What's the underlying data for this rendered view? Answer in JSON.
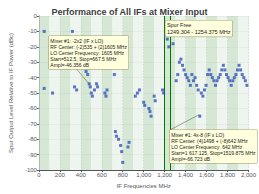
{
  "chart_data": {
    "type": "scatter",
    "title": "Performance of All IFs at Mixer Input",
    "xlabel": "IF Frequencies MHz",
    "ylabel": "Spur Output Level Relative to IF Power (dBc)",
    "xlim": [
      0,
      2000
    ],
    "ylim": [
      -100,
      0
    ],
    "xticks": [
      0,
      200,
      400,
      600,
      800,
      1000,
      1200,
      1400,
      1600,
      1800,
      2000
    ],
    "yticks": [
      0,
      -10,
      -20,
      -30,
      -40,
      -50,
      -60,
      -70,
      -80,
      -90,
      -100
    ],
    "grid": true,
    "color": "#3355bb",
    "marker": "square",
    "x": [
      50,
      50,
      130,
      320,
      340,
      360,
      450,
      465,
      480,
      490,
      500,
      510,
      530,
      550,
      560,
      630,
      640,
      650,
      720,
      730,
      740,
      760,
      780,
      790,
      800,
      850,
      860,
      920,
      940,
      960,
      1000,
      1010,
      1050,
      1060,
      1070,
      1100,
      1110,
      1180,
      1190,
      1210,
      1225,
      1240,
      1260,
      1280,
      1310,
      1325,
      1340,
      1355,
      1370,
      1385,
      1400,
      1415,
      1430,
      1445,
      1460,
      1475,
      1490,
      1505,
      1520,
      1535,
      1550,
      1565,
      1580,
      1595,
      1610,
      1625,
      1640,
      1655,
      1670,
      1685,
      1700,
      1715,
      1730,
      1745,
      1760,
      1775,
      1790,
      1805,
      1820,
      1835,
      1850,
      1865,
      1880,
      1895,
      1910,
      1925,
      1940,
      1955,
      1970,
      1985
    ],
    "values": [
      -10,
      -47,
      -50,
      -10,
      -46,
      -48,
      -36,
      -38,
      -44,
      -46,
      -50,
      -52,
      -48,
      -44,
      -46,
      -50,
      -52,
      -48,
      -38,
      -75,
      -78,
      -80,
      -84,
      -88,
      -95,
      -85,
      -82,
      -52,
      -50,
      -48,
      -56,
      -58,
      -60,
      -62,
      -65,
      -52,
      -55,
      -48,
      -50,
      -12,
      -15,
      -20,
      -10,
      -18,
      -42,
      -38,
      -30,
      -28,
      -32,
      -35,
      -38,
      -40,
      -42,
      -45,
      -38,
      -42,
      -40,
      -45,
      -48,
      -65,
      -50,
      -52,
      -48,
      -45,
      -38,
      -35,
      -38,
      -40,
      -42,
      -45,
      -42,
      -40,
      -38,
      -35,
      -32,
      -35,
      -38,
      -40,
      -42,
      -45,
      -42,
      -40,
      -38,
      -35,
      -32,
      -35,
      -38,
      -40,
      -42,
      -45
    ],
    "bands": [
      {
        "range": [
          0,
          100
        ],
        "color": "#c8dfc8"
      },
      {
        "range": [
          100,
          200
        ],
        "color": "#e8f2e8"
      },
      {
        "range": [
          200,
          300
        ],
        "color": "#c8dfc8"
      },
      {
        "range": [
          300,
          400
        ],
        "color": "#e8f2e8"
      },
      {
        "range": [
          400,
          500
        ],
        "color": "#c8dfc8"
      },
      {
        "range": [
          500,
          600
        ],
        "color": "#e8f2e8"
      },
      {
        "range": [
          600,
          700
        ],
        "color": "#c8dfc8"
      },
      {
        "range": [
          700,
          800
        ],
        "color": "#e8f2e8"
      },
      {
        "range": [
          800,
          900
        ],
        "color": "#c8dfc8"
      },
      {
        "range": [
          900,
          1000
        ],
        "color": "#e8f2e8"
      },
      {
        "range": [
          1000,
          1100
        ],
        "color": "#c8dfc8"
      },
      {
        "range": [
          1100,
          1200
        ],
        "color": "#e8f2e8"
      },
      {
        "range": [
          1200,
          1300
        ],
        "color": "#c8dfc8"
      },
      {
        "range": [
          1300,
          1400
        ],
        "color": "#e8f2e8"
      },
      {
        "range": [
          1400,
          1500
        ],
        "color": "#c8dfc8"
      },
      {
        "range": [
          1500,
          1600
        ],
        "color": "#e8f2e8"
      },
      {
        "range": [
          1600,
          1700
        ],
        "color": "#c8dfc8"
      },
      {
        "range": [
          1700,
          1800
        ],
        "color": "#e8f2e8"
      },
      {
        "range": [
          1800,
          1900
        ],
        "color": "#c8dfc8"
      },
      {
        "range": [
          1900,
          2000
        ],
        "color": "#e8f2e8"
      }
    ],
    "vertical_lines": [
      1200,
      1254
    ],
    "vertical_line_color": "#007700",
    "annotation_color": "#ffffdd",
    "annotations": [
      {
        "text": "Spur Free\n1249.304 - 1254.375 MHz",
        "text_xy": [
          1207,
          -3
        ],
        "xy": [
          1227,
          -5
        ]
      },
      {
        "text": "Mixer #1: -2x2 (IF x LO)\nRF Center: (-2)535 + (2)1605 MHz\nLO Center Frequency: 1605 MHz\nStart=512.5, Stop=667.5 MHz\nAmpl=-46.356 dB",
        "text_xy": [
          95,
          -13
        ],
        "xy": [
          490,
          -45
        ]
      },
      {
        "text": "Mixer #1: 4x-8 (IF x LO)\nRF Center: (4)1498 + (-8)642 MHz\nLO Center Frequency: 642 MHz\nStart=1 617.125, Stop=1519.875 MHz\nAmpl=-66.723 dB",
        "text_xy": [
          1380,
          -74
        ],
        "xy": [
          1530,
          -64
        ]
      }
    ]
  }
}
